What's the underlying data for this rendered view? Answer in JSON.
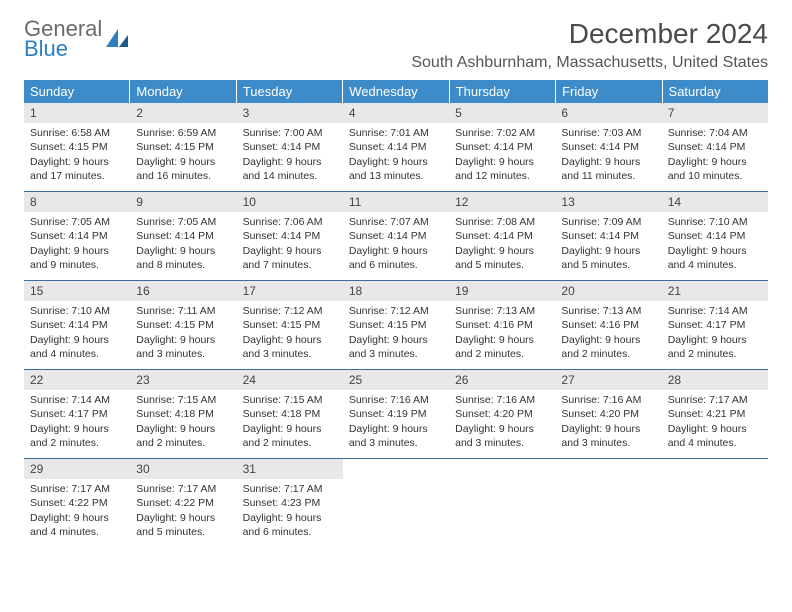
{
  "logo": {
    "text1": "General",
    "text2": "Blue"
  },
  "title": "December 2024",
  "location": "South Ashburnham, Massachusetts, United States",
  "colors": {
    "header_bg": "#3d8bc8",
    "header_text": "#ffffff",
    "daynum_bg": "#e8e8e8",
    "row_border": "#3d6b9a",
    "logo_gray": "#6b6b6b",
    "logo_blue": "#2d7fc1"
  },
  "day_names": [
    "Sunday",
    "Monday",
    "Tuesday",
    "Wednesday",
    "Thursday",
    "Friday",
    "Saturday"
  ],
  "weeks": [
    [
      {
        "n": "1",
        "sunrise": "Sunrise: 6:58 AM",
        "sunset": "Sunset: 4:15 PM",
        "daylight": "Daylight: 9 hours and 17 minutes."
      },
      {
        "n": "2",
        "sunrise": "Sunrise: 6:59 AM",
        "sunset": "Sunset: 4:15 PM",
        "daylight": "Daylight: 9 hours and 16 minutes."
      },
      {
        "n": "3",
        "sunrise": "Sunrise: 7:00 AM",
        "sunset": "Sunset: 4:14 PM",
        "daylight": "Daylight: 9 hours and 14 minutes."
      },
      {
        "n": "4",
        "sunrise": "Sunrise: 7:01 AM",
        "sunset": "Sunset: 4:14 PM",
        "daylight": "Daylight: 9 hours and 13 minutes."
      },
      {
        "n": "5",
        "sunrise": "Sunrise: 7:02 AM",
        "sunset": "Sunset: 4:14 PM",
        "daylight": "Daylight: 9 hours and 12 minutes."
      },
      {
        "n": "6",
        "sunrise": "Sunrise: 7:03 AM",
        "sunset": "Sunset: 4:14 PM",
        "daylight": "Daylight: 9 hours and 11 minutes."
      },
      {
        "n": "7",
        "sunrise": "Sunrise: 7:04 AM",
        "sunset": "Sunset: 4:14 PM",
        "daylight": "Daylight: 9 hours and 10 minutes."
      }
    ],
    [
      {
        "n": "8",
        "sunrise": "Sunrise: 7:05 AM",
        "sunset": "Sunset: 4:14 PM",
        "daylight": "Daylight: 9 hours and 9 minutes."
      },
      {
        "n": "9",
        "sunrise": "Sunrise: 7:05 AM",
        "sunset": "Sunset: 4:14 PM",
        "daylight": "Daylight: 9 hours and 8 minutes."
      },
      {
        "n": "10",
        "sunrise": "Sunrise: 7:06 AM",
        "sunset": "Sunset: 4:14 PM",
        "daylight": "Daylight: 9 hours and 7 minutes."
      },
      {
        "n": "11",
        "sunrise": "Sunrise: 7:07 AM",
        "sunset": "Sunset: 4:14 PM",
        "daylight": "Daylight: 9 hours and 6 minutes."
      },
      {
        "n": "12",
        "sunrise": "Sunrise: 7:08 AM",
        "sunset": "Sunset: 4:14 PM",
        "daylight": "Daylight: 9 hours and 5 minutes."
      },
      {
        "n": "13",
        "sunrise": "Sunrise: 7:09 AM",
        "sunset": "Sunset: 4:14 PM",
        "daylight": "Daylight: 9 hours and 5 minutes."
      },
      {
        "n": "14",
        "sunrise": "Sunrise: 7:10 AM",
        "sunset": "Sunset: 4:14 PM",
        "daylight": "Daylight: 9 hours and 4 minutes."
      }
    ],
    [
      {
        "n": "15",
        "sunrise": "Sunrise: 7:10 AM",
        "sunset": "Sunset: 4:14 PM",
        "daylight": "Daylight: 9 hours and 4 minutes."
      },
      {
        "n": "16",
        "sunrise": "Sunrise: 7:11 AM",
        "sunset": "Sunset: 4:15 PM",
        "daylight": "Daylight: 9 hours and 3 minutes."
      },
      {
        "n": "17",
        "sunrise": "Sunrise: 7:12 AM",
        "sunset": "Sunset: 4:15 PM",
        "daylight": "Daylight: 9 hours and 3 minutes."
      },
      {
        "n": "18",
        "sunrise": "Sunrise: 7:12 AM",
        "sunset": "Sunset: 4:15 PM",
        "daylight": "Daylight: 9 hours and 3 minutes."
      },
      {
        "n": "19",
        "sunrise": "Sunrise: 7:13 AM",
        "sunset": "Sunset: 4:16 PM",
        "daylight": "Daylight: 9 hours and 2 minutes."
      },
      {
        "n": "20",
        "sunrise": "Sunrise: 7:13 AM",
        "sunset": "Sunset: 4:16 PM",
        "daylight": "Daylight: 9 hours and 2 minutes."
      },
      {
        "n": "21",
        "sunrise": "Sunrise: 7:14 AM",
        "sunset": "Sunset: 4:17 PM",
        "daylight": "Daylight: 9 hours and 2 minutes."
      }
    ],
    [
      {
        "n": "22",
        "sunrise": "Sunrise: 7:14 AM",
        "sunset": "Sunset: 4:17 PM",
        "daylight": "Daylight: 9 hours and 2 minutes."
      },
      {
        "n": "23",
        "sunrise": "Sunrise: 7:15 AM",
        "sunset": "Sunset: 4:18 PM",
        "daylight": "Daylight: 9 hours and 2 minutes."
      },
      {
        "n": "24",
        "sunrise": "Sunrise: 7:15 AM",
        "sunset": "Sunset: 4:18 PM",
        "daylight": "Daylight: 9 hours and 2 minutes."
      },
      {
        "n": "25",
        "sunrise": "Sunrise: 7:16 AM",
        "sunset": "Sunset: 4:19 PM",
        "daylight": "Daylight: 9 hours and 3 minutes."
      },
      {
        "n": "26",
        "sunrise": "Sunrise: 7:16 AM",
        "sunset": "Sunset: 4:20 PM",
        "daylight": "Daylight: 9 hours and 3 minutes."
      },
      {
        "n": "27",
        "sunrise": "Sunrise: 7:16 AM",
        "sunset": "Sunset: 4:20 PM",
        "daylight": "Daylight: 9 hours and 3 minutes."
      },
      {
        "n": "28",
        "sunrise": "Sunrise: 7:17 AM",
        "sunset": "Sunset: 4:21 PM",
        "daylight": "Daylight: 9 hours and 4 minutes."
      }
    ],
    [
      {
        "n": "29",
        "sunrise": "Sunrise: 7:17 AM",
        "sunset": "Sunset: 4:22 PM",
        "daylight": "Daylight: 9 hours and 4 minutes."
      },
      {
        "n": "30",
        "sunrise": "Sunrise: 7:17 AM",
        "sunset": "Sunset: 4:22 PM",
        "daylight": "Daylight: 9 hours and 5 minutes."
      },
      {
        "n": "31",
        "sunrise": "Sunrise: 7:17 AM",
        "sunset": "Sunset: 4:23 PM",
        "daylight": "Daylight: 9 hours and 6 minutes."
      },
      null,
      null,
      null,
      null
    ]
  ]
}
